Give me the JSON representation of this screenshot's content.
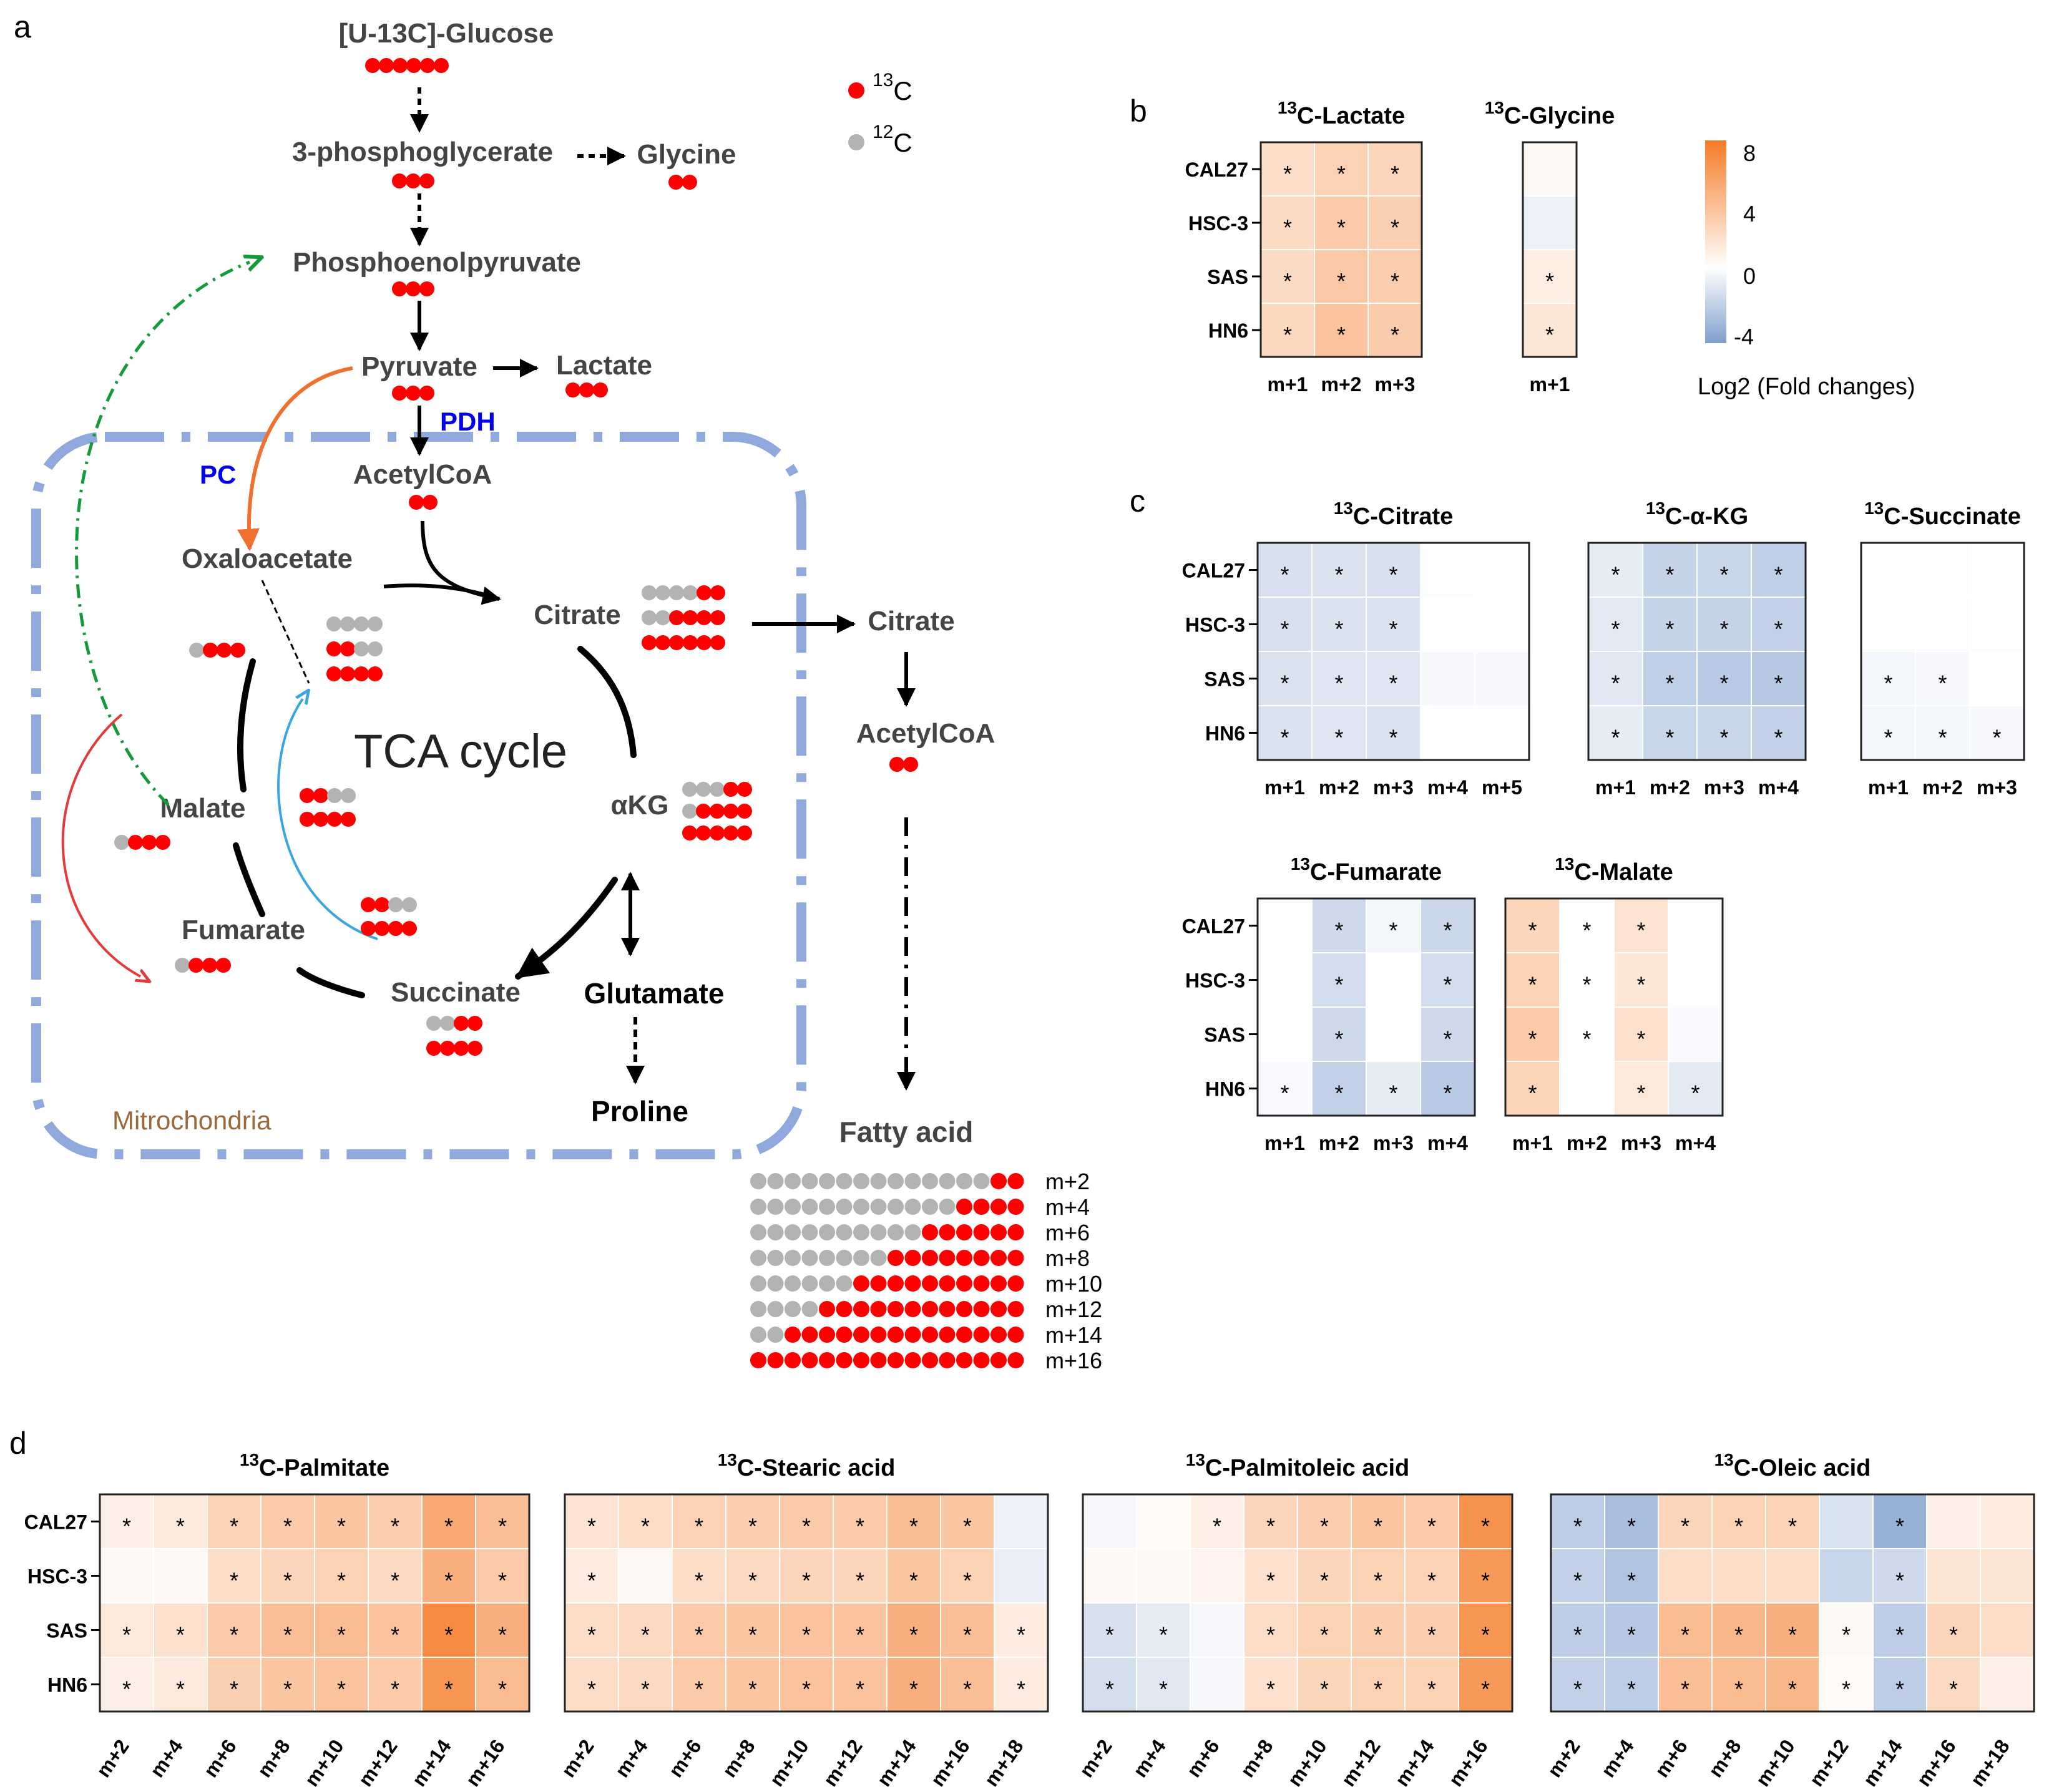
{
  "panel_labels": {
    "a": "a",
    "b": "b",
    "c": "c",
    "d": "d"
  },
  "colors": {
    "c13": "#ff0000",
    "c12": "#b3b3b3",
    "mito": "#8fa9dc",
    "enzyme": "#0000ee",
    "mito_label": "#9b6a3c",
    "pc_arrow": "#f07030",
    "green_arrow": "#149a3a",
    "red_arrow": "#e33b3b",
    "blue_arrow": "#3aa6e0",
    "text_dark": "#444444",
    "cmap_neg": "#7f9fcd",
    "cmap_zero": "#ffffff",
    "cmap_pos": "#f57c28"
  },
  "pathway": {
    "legend": {
      "c13_label": "13C",
      "c12_label": "12C"
    },
    "metabolites": {
      "glucose": "[U-13C]-Glucose",
      "pg3": "3-phosphoglycerate",
      "glycine": "Glycine",
      "pep": "Phosphoenolpyruvate",
      "pyruvate": "Pyruvate",
      "lactate": "Lactate",
      "acetylcoa": "AcetylCoA",
      "oxaloacetate": "Oxaloacetate",
      "citrate": "Citrate",
      "citrate_cyto": "Citrate",
      "acetylcoa_cyto": "AcetylCoA",
      "akg": "αKG",
      "glutamate": "Glutamate",
      "proline": "Proline",
      "succinate": "Succinate",
      "fumarate": "Fumarate",
      "malate": "Malate",
      "fatty_acid": "Fatty acid"
    },
    "enzymes": {
      "pdh": "PDH",
      "pc": "PC"
    },
    "tca_label": "TCA cycle",
    "mito_label": "Mitrochondria",
    "fatty_acid_isotopologues": [
      "m+2",
      "m+4",
      "m+6",
      "m+8",
      "m+10",
      "m+12",
      "m+14",
      "m+16"
    ]
  },
  "heatmaps": {
    "scale": {
      "ticks": [
        8,
        4,
        0,
        -4
      ],
      "min": -5,
      "max": 8.5,
      "label": "Log2 (Fold changes)"
    },
    "rows": [
      "CAL27",
      "HSC-3",
      "SAS",
      "HN6"
    ],
    "lactate": {
      "title": "Lactate",
      "cols": [
        "m+1",
        "m+2",
        "m+3"
      ],
      "values": [
        [
          1.8,
          2.4,
          2.2
        ],
        [
          1.9,
          2.8,
          2.5
        ],
        [
          1.9,
          2.9,
          2.6
        ],
        [
          2.1,
          3.2,
          2.7
        ]
      ],
      "sig": [
        [
          1,
          1,
          1
        ],
        [
          1,
          1,
          1
        ],
        [
          1,
          1,
          1
        ],
        [
          1,
          1,
          1
        ]
      ]
    },
    "glycine": {
      "title": "Glycine",
      "cols": [
        "m+1"
      ],
      "values": [
        [
          0.3
        ],
        [
          -0.6
        ],
        [
          0.9
        ],
        [
          1.3
        ]
      ],
      "sig": [
        [
          0
        ],
        [
          0
        ],
        [
          1
        ],
        [
          1
        ]
      ]
    },
    "citrate": {
      "title": "Citrate",
      "cols": [
        "m+1",
        "m+2",
        "m+3",
        "m+4",
        "m+5"
      ],
      "values": [
        [
          -1.3,
          -1.2,
          -1.3,
          -0.1,
          -0.05
        ],
        [
          -1.3,
          -1.2,
          -1.2,
          0,
          0
        ],
        [
          -1.2,
          -1.1,
          -1.1,
          -0.3,
          -0.3
        ],
        [
          -1.2,
          -1.1,
          -1.2,
          0,
          0
        ]
      ],
      "sig": [
        [
          1,
          1,
          1,
          0,
          0
        ],
        [
          1,
          1,
          1,
          0,
          0
        ],
        [
          1,
          1,
          1,
          0,
          0
        ],
        [
          1,
          1,
          1,
          0,
          0
        ]
      ]
    },
    "akg": {
      "title": "α-KG",
      "cols": [
        "m+1",
        "m+2",
        "m+3",
        "m+4"
      ],
      "values": [
        [
          -0.8,
          -1.9,
          -1.8,
          -2.1
        ],
        [
          -0.9,
          -1.9,
          -1.9,
          -2.0
        ],
        [
          -1.0,
          -2.1,
          -2.3,
          -2.4
        ],
        [
          -0.8,
          -1.8,
          -1.8,
          -2.0
        ]
      ],
      "sig": [
        [
          1,
          1,
          1,
          1
        ],
        [
          1,
          1,
          1,
          1
        ],
        [
          1,
          1,
          1,
          1
        ],
        [
          1,
          1,
          1,
          1
        ]
      ]
    },
    "succinate": {
      "title": "Succinate",
      "cols": [
        "m+1",
        "m+2",
        "m+3"
      ],
      "values": [
        [
          0.1,
          0.1,
          0.1
        ],
        [
          0.1,
          0.1,
          0.1
        ],
        [
          -0.4,
          -0.3,
          0
        ],
        [
          -0.4,
          -0.4,
          -0.3
        ]
      ],
      "sig": [
        [
          0,
          0,
          0
        ],
        [
          0,
          0,
          0
        ],
        [
          1,
          1,
          0
        ],
        [
          1,
          1,
          1
        ]
      ]
    },
    "fumarate": {
      "title": "Fumarate",
      "cols": [
        "m+1",
        "m+2",
        "m+3",
        "m+4"
      ],
      "values": [
        [
          0,
          -1.6,
          -0.4,
          -1.7
        ],
        [
          0,
          -1.5,
          0,
          -1.5
        ],
        [
          0,
          -1.6,
          0,
          -1.6
        ],
        [
          -0.2,
          -2.0,
          -0.8,
          -2.3
        ]
      ],
      "sig": [
        [
          0,
          1,
          1,
          1
        ],
        [
          0,
          1,
          0,
          1
        ],
        [
          0,
          1,
          0,
          1
        ],
        [
          1,
          1,
          1,
          1
        ]
      ]
    },
    "malate": {
      "title": "Malate",
      "cols": [
        "m+1",
        "m+2",
        "m+3",
        "m+4"
      ],
      "values": [
        [
          2.2,
          0,
          1.5,
          0
        ],
        [
          2.4,
          0,
          1.3,
          0
        ],
        [
          2.8,
          0,
          1.6,
          -0.2
        ],
        [
          2.3,
          0,
          1.2,
          -0.9
        ]
      ],
      "sig": [
        [
          1,
          1,
          1,
          0
        ],
        [
          1,
          1,
          1,
          0
        ],
        [
          1,
          1,
          1,
          0
        ],
        [
          1,
          0,
          1,
          1
        ]
      ]
    },
    "palmitate": {
      "title": "Palmitate",
      "cols": [
        "m+2",
        "m+4",
        "m+6",
        "m+8",
        "m+10",
        "m+12",
        "m+14",
        "m+16"
      ],
      "values": [
        [
          0.8,
          1.2,
          2.4,
          2.8,
          3.0,
          2.6,
          4.6,
          3.4
        ],
        [
          0.3,
          0.3,
          1.8,
          2.2,
          2.4,
          2.0,
          4.2,
          2.8
        ],
        [
          1.2,
          1.6,
          2.8,
          3.4,
          3.6,
          3.2,
          6.2,
          4.2
        ],
        [
          0.8,
          1.1,
          2.5,
          3.0,
          3.2,
          2.8,
          5.6,
          3.6
        ]
      ],
      "sig": [
        [
          1,
          1,
          1,
          1,
          1,
          1,
          1,
          1
        ],
        [
          0,
          0,
          1,
          1,
          1,
          1,
          1,
          1
        ],
        [
          1,
          1,
          1,
          1,
          1,
          1,
          1,
          1
        ],
        [
          1,
          1,
          1,
          1,
          1,
          1,
          1,
          1
        ]
      ]
    },
    "stearic": {
      "title": "Stearic acid",
      "cols": [
        "m+2",
        "m+4",
        "m+6",
        "m+8",
        "m+10",
        "m+12",
        "m+14",
        "m+16",
        "m+18"
      ],
      "values": [
        [
          1.5,
          1.8,
          2.4,
          2.6,
          2.8,
          2.8,
          3.6,
          3.0,
          -0.6
        ],
        [
          1.0,
          0.3,
          1.8,
          2.0,
          2.2,
          2.2,
          3.0,
          2.4,
          -0.7
        ],
        [
          1.8,
          2.0,
          2.8,
          3.0,
          3.2,
          3.2,
          4.2,
          3.4,
          1.0
        ],
        [
          1.8,
          2.0,
          2.8,
          3.0,
          3.2,
          3.2,
          4.2,
          3.4,
          1.0
        ]
      ],
      "sig": [
        [
          1,
          1,
          1,
          1,
          1,
          1,
          1,
          1,
          0
        ],
        [
          1,
          0,
          1,
          1,
          1,
          1,
          1,
          1,
          0
        ],
        [
          1,
          1,
          1,
          1,
          1,
          1,
          1,
          1,
          1
        ],
        [
          1,
          1,
          1,
          1,
          1,
          1,
          1,
          1,
          1
        ]
      ]
    },
    "palmitoleic": {
      "title": "Palmitoleic acid",
      "cols": [
        "m+2",
        "m+4",
        "m+6",
        "m+8",
        "m+10",
        "m+12",
        "m+14",
        "m+16"
      ],
      "values": [
        [
          -0.3,
          0.2,
          0.8,
          2.2,
          2.6,
          3.0,
          2.8,
          5.8
        ],
        [
          0.3,
          0.3,
          0.6,
          1.6,
          2.2,
          2.4,
          2.4,
          5.4
        ],
        [
          -1.3,
          -0.8,
          -0.3,
          1.8,
          2.4,
          2.6,
          2.6,
          5.6
        ],
        [
          -1.4,
          -1.0,
          -0.3,
          1.6,
          2.2,
          2.4,
          2.4,
          5.4
        ]
      ],
      "sig": [
        [
          0,
          0,
          1,
          1,
          1,
          1,
          1,
          1
        ],
        [
          0,
          0,
          0,
          1,
          1,
          1,
          1,
          1
        ],
        [
          1,
          1,
          0,
          1,
          1,
          1,
          1,
          1
        ],
        [
          1,
          1,
          0,
          1,
          1,
          1,
          1,
          1
        ]
      ]
    },
    "oleic": {
      "title": "Oleic acid",
      "cols": [
        "m+2",
        "m+4",
        "m+6",
        "m+8",
        "m+10",
        "m+12",
        "m+14",
        "m+16",
        "m+18"
      ],
      "values": [
        [
          -2.2,
          -2.8,
          2.2,
          2.4,
          2.4,
          -1.2,
          -3.4,
          0.8,
          1.0
        ],
        [
          -2.0,
          -2.6,
          1.8,
          1.8,
          1.8,
          -1.8,
          -1.6,
          1.4,
          1.4
        ],
        [
          -2.2,
          -2.4,
          3.6,
          3.8,
          4.2,
          0.3,
          -2.2,
          2.2,
          1.8
        ],
        [
          -2.0,
          -2.2,
          3.4,
          3.6,
          3.8,
          0.2,
          -2.2,
          2.0,
          0.8
        ]
      ],
      "sig": [
        [
          1,
          1,
          1,
          1,
          1,
          0,
          1,
          0,
          0
        ],
        [
          1,
          1,
          0,
          0,
          0,
          0,
          1,
          0,
          0
        ],
        [
          1,
          1,
          1,
          1,
          1,
          1,
          1,
          1,
          0
        ],
        [
          1,
          1,
          1,
          1,
          1,
          1,
          1,
          1,
          0
        ]
      ]
    }
  }
}
